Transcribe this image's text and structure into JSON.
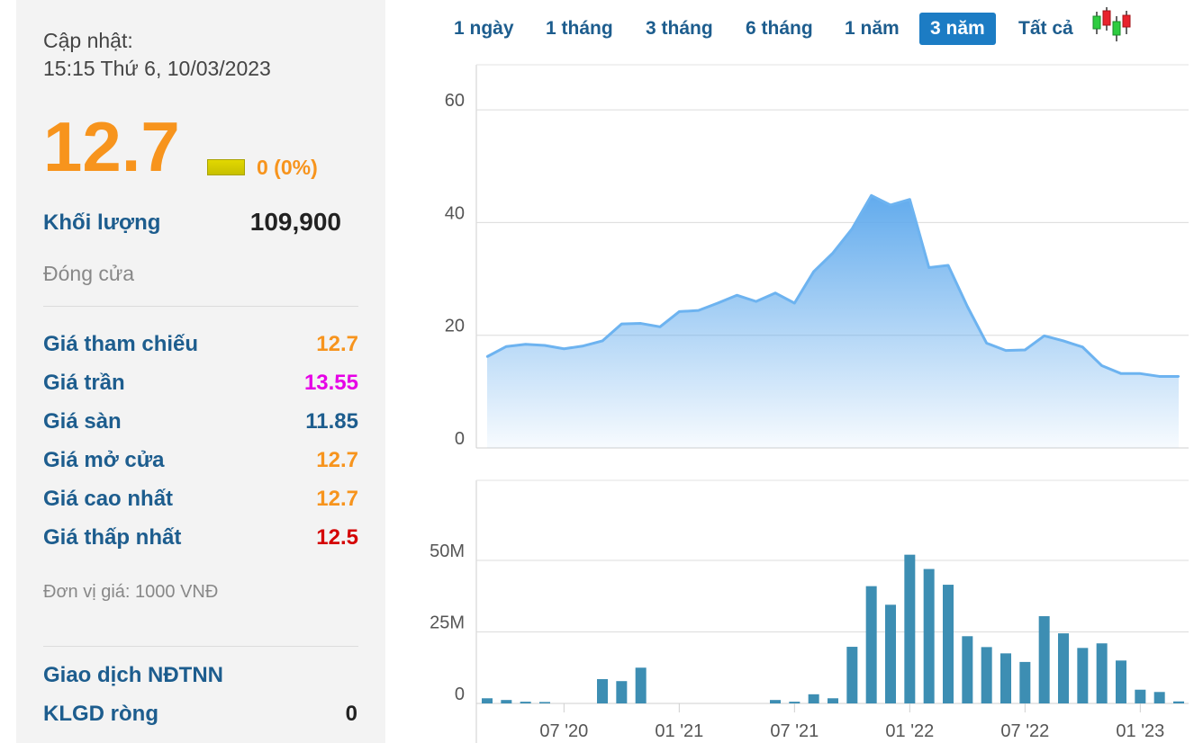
{
  "info": {
    "update_label": "Cập nhật:",
    "update_time": "15:15 Thứ 6, 10/03/2023",
    "price": "12.7",
    "change": "0 (0%)",
    "volume_label": "Khối lượng",
    "volume_value": "109,900",
    "state": "Đóng cửa",
    "rows": [
      {
        "label": "Giá tham chiếu",
        "value": "12.7",
        "color": "#f7941d"
      },
      {
        "label": "Giá trần",
        "value": "13.55",
        "color": "#e600e6"
      },
      {
        "label": "Giá sàn",
        "value": "11.85",
        "color": "#1d5d8e"
      },
      {
        "label": "Giá mở cửa",
        "value": "12.7",
        "color": "#f7941d"
      },
      {
        "label": "Giá cao nhất",
        "value": "12.7",
        "color": "#f7941d"
      },
      {
        "label": "Giá thấp nhất",
        "value": "12.5",
        "color": "#d40000"
      }
    ],
    "unit_note": "Đơn vị giá: 1000 VNĐ",
    "foreign_title": "Giao dịch NĐTNN",
    "net_label": "KLGD ròng",
    "net_value": "0"
  },
  "tabs": [
    {
      "label": "1 ngày",
      "active": false
    },
    {
      "label": "1 tháng",
      "active": false
    },
    {
      "label": "3 tháng",
      "active": false
    },
    {
      "label": "6 tháng",
      "active": false
    },
    {
      "label": "1 năm",
      "active": false
    },
    {
      "label": "3 năm",
      "active": true
    },
    {
      "label": "Tất cả",
      "active": false
    }
  ],
  "chart_data": [
    {
      "type": "area",
      "title": "",
      "color": "#6db3f0",
      "ylim": [
        0,
        68
      ],
      "yticks": [
        0,
        20,
        40,
        60
      ],
      "ytick_labels": [
        "0",
        "20",
        "40",
        "60"
      ],
      "grid": true,
      "x": [
        "2020-03",
        "2020-04",
        "2020-05",
        "2020-06",
        "2020-07",
        "2020-08",
        "2020-09",
        "2020-10",
        "2020-11",
        "2020-12",
        "2021-01",
        "2021-02",
        "2021-03",
        "2021-04",
        "2021-05",
        "2021-06",
        "2021-07",
        "2021-08",
        "2021-09",
        "2021-10",
        "2021-11",
        "2021-12",
        "2022-01",
        "2022-02",
        "2022-03",
        "2022-04",
        "2022-05",
        "2022-06",
        "2022-07",
        "2022-08",
        "2022-09",
        "2022-10",
        "2022-11",
        "2022-12",
        "2023-01",
        "2023-02",
        "2023-03"
      ],
      "values": [
        16.2,
        18.0,
        18.4,
        18.2,
        17.6,
        18.1,
        19.0,
        22.0,
        22.1,
        21.5,
        24.2,
        24.4,
        25.7,
        27.1,
        26.0,
        27.5,
        25.7,
        31.3,
        34.6,
        38.9,
        44.8,
        43.1,
        44.1,
        32.0,
        32.4,
        25.1,
        18.6,
        17.3,
        17.4,
        19.9,
        19.0,
        17.9,
        14.6,
        13.2,
        13.2,
        12.7,
        12.7
      ]
    },
    {
      "type": "bar",
      "title": "",
      "color": "#3d8eb3",
      "ylim": [
        0,
        78
      ],
      "yticks": [
        0,
        25,
        50
      ],
      "ytick_labels": [
        "0",
        "25M",
        "50M"
      ],
      "grid": true,
      "x": [
        "2020-03",
        "2020-04",
        "2020-05",
        "2020-06",
        "2020-07",
        "2020-08",
        "2020-09",
        "2020-10",
        "2020-11",
        "2020-12",
        "2021-01",
        "2021-02",
        "2021-03",
        "2021-04",
        "2021-05",
        "2021-06",
        "2021-07",
        "2021-08",
        "2021-09",
        "2021-10",
        "2021-11",
        "2021-12",
        "2022-01",
        "2022-02",
        "2022-03",
        "2022-04",
        "2022-05",
        "2022-06",
        "2022-07",
        "2022-08",
        "2022-09",
        "2022-10",
        "2022-11",
        "2022-12",
        "2023-01",
        "2023-02",
        "2023-03"
      ],
      "values": [
        1.8,
        1.2,
        0.6,
        0.5,
        0,
        0,
        8.5,
        7.8,
        12.5,
        0,
        0,
        0,
        0,
        0,
        0,
        1.2,
        0.6,
        3.2,
        1.8,
        19.8,
        41.0,
        34.5,
        52.0,
        47.0,
        41.5,
        23.5,
        19.7,
        17.5,
        14.5,
        30.5,
        24.5,
        19.4,
        21.0,
        15.0,
        4.8,
        4.0,
        0.7
      ],
      "unit": "M"
    }
  ],
  "x_axis": {
    "labels": [
      {
        "label": "07 '20",
        "x": "2020-07"
      },
      {
        "label": "01 '21",
        "x": "2021-01"
      },
      {
        "label": "07 '21",
        "x": "2021-07"
      },
      {
        "label": "01 '22",
        "x": "2022-01"
      },
      {
        "label": "07 '22",
        "x": "2022-07"
      },
      {
        "label": "01 '23",
        "x": "2023-01"
      }
    ]
  },
  "colors": {
    "accent": "#1c7cc4",
    "link": "#1d5d8e",
    "price": "#f7941d",
    "unchanged_box": "#d6cd00",
    "candle_up": "#2ecc40",
    "candle_down": "#e8232c"
  }
}
